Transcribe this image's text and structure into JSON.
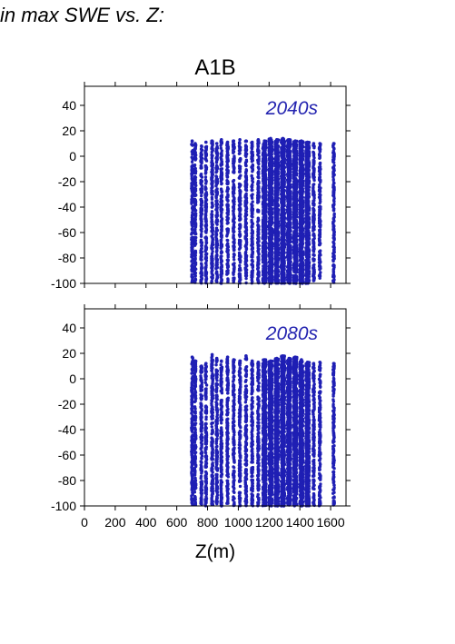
{
  "heading": "in max SWE vs. Z:",
  "colors": {
    "points": "#1f1fb4",
    "label": "#2424b0",
    "axis": "#000000"
  },
  "chart_data": [
    {
      "type": "scatter",
      "title": "A1B",
      "annotation": "2040s",
      "xlabel": "",
      "ylabel": "",
      "xlim": [
        0,
        1700
      ],
      "ylim": [
        -100,
        55
      ],
      "yticks": [
        40,
        20,
        0,
        -20,
        -40,
        -60,
        -80,
        -100
      ],
      "xticks": [
        0,
        200,
        400,
        600,
        800,
        1000,
        1200,
        1400,
        1600
      ],
      "show_x_tick_labels": false,
      "grid": false,
      "point_columns": [
        {
          "x": 700,
          "ymin": -100,
          "ymax": 12
        },
        {
          "x": 720,
          "ymin": -100,
          "ymax": 10
        },
        {
          "x": 760,
          "ymin": -100,
          "ymax": 8
        },
        {
          "x": 790,
          "ymin": -100,
          "ymax": 11
        },
        {
          "x": 830,
          "ymin": -100,
          "ymax": 12
        },
        {
          "x": 860,
          "ymin": -100,
          "ymax": 10
        },
        {
          "x": 890,
          "ymin": -100,
          "ymax": 13
        },
        {
          "x": 930,
          "ymin": -100,
          "ymax": 11
        },
        {
          "x": 970,
          "ymin": -100,
          "ymax": 12
        },
        {
          "x": 1010,
          "ymin": -100,
          "ymax": 13
        },
        {
          "x": 1050,
          "ymin": -100,
          "ymax": 12
        },
        {
          "x": 1090,
          "ymin": -100,
          "ymax": 11
        },
        {
          "x": 1130,
          "ymin": -100,
          "ymax": 13
        },
        {
          "x": 1170,
          "ymin": -100,
          "ymax": 12
        },
        {
          "x": 1210,
          "ymin": -100,
          "ymax": 14
        },
        {
          "x": 1250,
          "ymin": -100,
          "ymax": 13
        },
        {
          "x": 1290,
          "ymin": -100,
          "ymax": 14
        },
        {
          "x": 1330,
          "ymin": -100,
          "ymax": 13
        },
        {
          "x": 1370,
          "ymin": -100,
          "ymax": 12
        },
        {
          "x": 1410,
          "ymin": -100,
          "ymax": 12
        },
        {
          "x": 1450,
          "ymin": -100,
          "ymax": 11
        },
        {
          "x": 1490,
          "ymin": -100,
          "ymax": 10
        },
        {
          "x": 1530,
          "ymin": -100,
          "ymax": 10
        },
        {
          "x": 1620,
          "ymin": -100,
          "ymax": 10
        }
      ]
    },
    {
      "type": "scatter",
      "title": "",
      "annotation": "2080s",
      "xlabel": "Z(m)",
      "ylabel": "",
      "xlim": [
        0,
        1700
      ],
      "ylim": [
        -100,
        55
      ],
      "yticks": [
        40,
        20,
        0,
        -20,
        -40,
        -60,
        -80,
        -100
      ],
      "xticks": [
        0,
        200,
        400,
        600,
        800,
        1000,
        1200,
        1400,
        1600
      ],
      "xtick_labels": [
        "0",
        "200",
        "400",
        "600",
        "800",
        "1000",
        "1200",
        "1400",
        "1600"
      ],
      "show_x_tick_labels": true,
      "grid": false,
      "point_columns": [
        {
          "x": 700,
          "ymin": -100,
          "ymax": 17
        },
        {
          "x": 720,
          "ymin": -100,
          "ymax": 14
        },
        {
          "x": 760,
          "ymin": -100,
          "ymax": 10
        },
        {
          "x": 790,
          "ymin": -100,
          "ymax": 12
        },
        {
          "x": 830,
          "ymin": -100,
          "ymax": 19
        },
        {
          "x": 860,
          "ymin": -100,
          "ymax": 16
        },
        {
          "x": 890,
          "ymin": -100,
          "ymax": 14
        },
        {
          "x": 930,
          "ymin": -100,
          "ymax": 17
        },
        {
          "x": 970,
          "ymin": -100,
          "ymax": 15
        },
        {
          "x": 1010,
          "ymin": -100,
          "ymax": 14
        },
        {
          "x": 1050,
          "ymin": -100,
          "ymax": 18
        },
        {
          "x": 1090,
          "ymin": -100,
          "ymax": 14
        },
        {
          "x": 1130,
          "ymin": -100,
          "ymax": 13
        },
        {
          "x": 1170,
          "ymin": -100,
          "ymax": 15
        },
        {
          "x": 1210,
          "ymin": -100,
          "ymax": 14
        },
        {
          "x": 1250,
          "ymin": -100,
          "ymax": 16
        },
        {
          "x": 1290,
          "ymin": -100,
          "ymax": 18
        },
        {
          "x": 1330,
          "ymin": -100,
          "ymax": 16
        },
        {
          "x": 1370,
          "ymin": -100,
          "ymax": 17
        },
        {
          "x": 1410,
          "ymin": -100,
          "ymax": 15
        },
        {
          "x": 1450,
          "ymin": -100,
          "ymax": 13
        },
        {
          "x": 1490,
          "ymin": -100,
          "ymax": 12
        },
        {
          "x": 1530,
          "ymin": -100,
          "ymax": 13
        },
        {
          "x": 1620,
          "ymin": -100,
          "ymax": 12
        }
      ]
    }
  ]
}
